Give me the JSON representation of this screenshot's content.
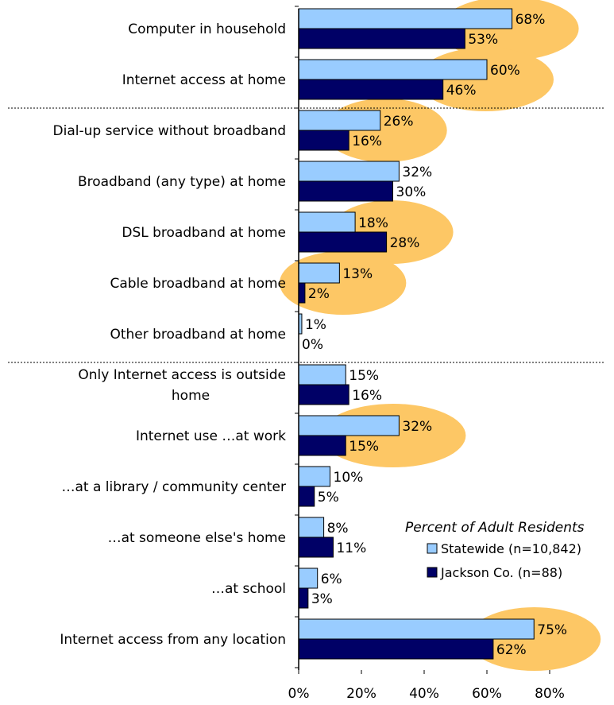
{
  "chart_data": {
    "type": "bar",
    "orientation": "horizontal",
    "categories": [
      [
        "Computer in household"
      ],
      [
        "Internet access at home"
      ],
      [
        "Dial-up service without broadband"
      ],
      [
        "Broadband (any type) at home"
      ],
      [
        "DSL broadband at home"
      ],
      [
        "Cable broadband at home"
      ],
      [
        "Other broadband at home"
      ],
      [
        "Only Internet access is outside",
        "home"
      ],
      [
        "Internet use …at work"
      ],
      [
        "…at a library / community center"
      ],
      [
        "…at someone else's home"
      ],
      [
        "…at school"
      ],
      [
        "Internet access from any location"
      ]
    ],
    "series": [
      {
        "name": "Statewide (n=10,842)",
        "values": [
          68,
          60,
          26,
          32,
          18,
          13,
          1,
          15,
          32,
          10,
          8,
          6,
          75
        ],
        "color": "#99ccff"
      },
      {
        "name": "Jackson Co. (n=88)",
        "values": [
          53,
          46,
          16,
          30,
          28,
          2,
          0,
          16,
          15,
          5,
          11,
          3,
          62
        ],
        "color": "#000066"
      }
    ],
    "value_suffix": "%",
    "xlim": [
      0,
      80
    ],
    "xticks": [
      "0%",
      "20%",
      "40%",
      "60%",
      "80%"
    ],
    "legend_title": "Percent of Adult Residents",
    "legend_placement": "bottom-right",
    "highlighted_categories": [
      0,
      1,
      2,
      4,
      5,
      8,
      12
    ],
    "highlight_color": "#fdc765",
    "separators_after": [
      1,
      6
    ]
  }
}
